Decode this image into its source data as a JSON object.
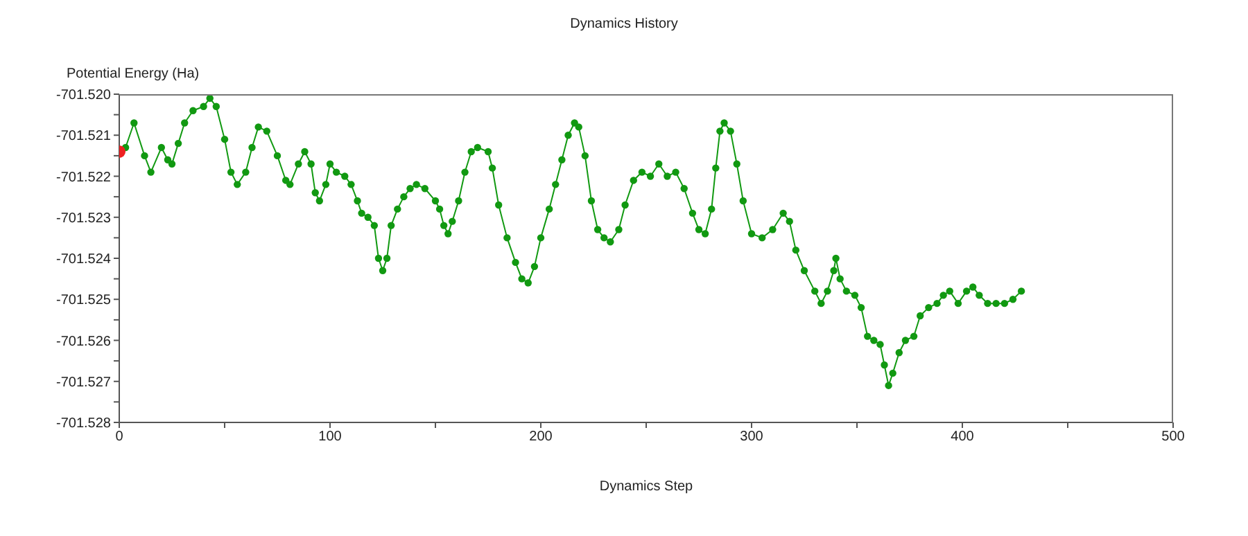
{
  "chart_data": {
    "type": "line",
    "title": "Dynamics History",
    "xlabel": "Dynamics Step",
    "ylabel": "Potential Energy (Ha)",
    "xlim": [
      0,
      500
    ],
    "xticks": [
      0,
      {
        "value": 50,
        "label": null
      },
      100,
      {
        "value": 150,
        "label": null
      },
      200,
      {
        "value": 250,
        "label": null
      },
      300,
      {
        "value": 350,
        "label": null
      },
      400,
      {
        "value": 450,
        "label": null
      },
      500
    ],
    "ylim": [
      -701.528,
      -701.52
    ],
    "yticks": [
      {
        "value": -701.528,
        "label": "-701.528"
      },
      {
        "value": -701.5275,
        "label": null
      },
      {
        "value": -701.527,
        "label": "-701.527"
      },
      {
        "value": -701.5265,
        "label": null
      },
      {
        "value": -701.526,
        "label": "-701.526"
      },
      {
        "value": -701.5255,
        "label": null
      },
      {
        "value": -701.525,
        "label": "-701.525"
      },
      {
        "value": -701.5245,
        "label": null
      },
      {
        "value": -701.524,
        "label": "-701.524"
      },
      {
        "value": -701.5235,
        "label": null
      },
      {
        "value": -701.523,
        "label": "-701.523"
      },
      {
        "value": -701.5225,
        "label": null
      },
      {
        "value": -701.522,
        "label": "-701.522"
      },
      {
        "value": -701.5215,
        "label": null
      },
      {
        "value": -701.521,
        "label": "-701.521"
      },
      {
        "value": -701.5205,
        "label": null
      },
      {
        "value": -701.52,
        "label": "-701.520"
      }
    ],
    "grid": false,
    "legend": false,
    "marker": "circle",
    "line_style": "solid",
    "series": [
      {
        "color": "#119911",
        "x": [
          3,
          7,
          12,
          15,
          20,
          23,
          25,
          28,
          31,
          35,
          40,
          43,
          46,
          50,
          53,
          56,
          60,
          63,
          66,
          70,
          75,
          79,
          81,
          85,
          88,
          91,
          93,
          95,
          98,
          100,
          103,
          107,
          110,
          113,
          115,
          118,
          121,
          123,
          125,
          127,
          129,
          132,
          135,
          138,
          141,
          145,
          150,
          152,
          154,
          156,
          158,
          161,
          164,
          167,
          170,
          175,
          177,
          180,
          184,
          188,
          191,
          194,
          197,
          200,
          204,
          207,
          210,
          213,
          216,
          218,
          221,
          224,
          227,
          230,
          233,
          237,
          240,
          244,
          248,
          252,
          256,
          260,
          264,
          268,
          272,
          275,
          278,
          281,
          283,
          285,
          287,
          290,
          293,
          296,
          300,
          305,
          310,
          315,
          318,
          321,
          325,
          330,
          333,
          336,
          339,
          340,
          342,
          345,
          349,
          352,
          355,
          358,
          361,
          363,
          365,
          367,
          370,
          373,
          377,
          380,
          384,
          388,
          391,
          394,
          398,
          402,
          405,
          408,
          412,
          416,
          420,
          424,
          428
        ],
        "values": [
          -701.5213,
          -701.5207,
          -701.5215,
          -701.5219,
          -701.5213,
          -701.5216,
          -701.5217,
          -701.5212,
          -701.5207,
          -701.5204,
          -701.5203,
          -701.5201,
          -701.5203,
          -701.5211,
          -701.5219,
          -701.5222,
          -701.5219,
          -701.5213,
          -701.5208,
          -701.5209,
          -701.5215,
          -701.5221,
          -701.5222,
          -701.5217,
          -701.5214,
          -701.5217,
          -701.5224,
          -701.5226,
          -701.5222,
          -701.5217,
          -701.5219,
          -701.522,
          -701.5222,
          -701.5226,
          -701.5229,
          -701.523,
          -701.5232,
          -701.524,
          -701.5243,
          -701.524,
          -701.5232,
          -701.5228,
          -701.5225,
          -701.5223,
          -701.5222,
          -701.5223,
          -701.5226,
          -701.5228,
          -701.5232,
          -701.5234,
          -701.5231,
          -701.5226,
          -701.5219,
          -701.5214,
          -701.5213,
          -701.5214,
          -701.5218,
          -701.5227,
          -701.5235,
          -701.5241,
          -701.5245,
          -701.5246,
          -701.5242,
          -701.5235,
          -701.5228,
          -701.5222,
          -701.5216,
          -701.521,
          -701.5207,
          -701.5208,
          -701.5215,
          -701.5226,
          -701.5233,
          -701.5235,
          -701.5236,
          -701.5233,
          -701.5227,
          -701.5221,
          -701.5219,
          -701.522,
          -701.5217,
          -701.522,
          -701.5219,
          -701.5223,
          -701.5229,
          -701.5233,
          -701.5234,
          -701.5228,
          -701.5218,
          -701.5209,
          -701.5207,
          -701.5209,
          -701.5217,
          -701.5226,
          -701.5234,
          -701.5235,
          -701.5233,
          -701.5229,
          -701.5231,
          -701.5238,
          -701.5243,
          -701.5248,
          -701.5251,
          -701.5248,
          -701.5243,
          -701.524,
          -701.5245,
          -701.5248,
          -701.5249,
          -701.5252,
          -701.5259,
          -701.526,
          -701.5261,
          -701.5266,
          -701.5271,
          -701.5268,
          -701.5263,
          -701.526,
          -701.5259,
          -701.5254,
          -701.5252,
          -701.5251,
          -701.5249,
          -701.5248,
          -701.5251,
          -701.5248,
          -701.5247,
          -701.5249,
          -701.5251,
          -701.5251,
          -701.5251,
          -701.525,
          -701.5248
        ]
      },
      {
        "type": "scatter",
        "color": "#ee2222",
        "x": [
          0
        ],
        "values": [
          -701.5214
        ]
      }
    ]
  }
}
